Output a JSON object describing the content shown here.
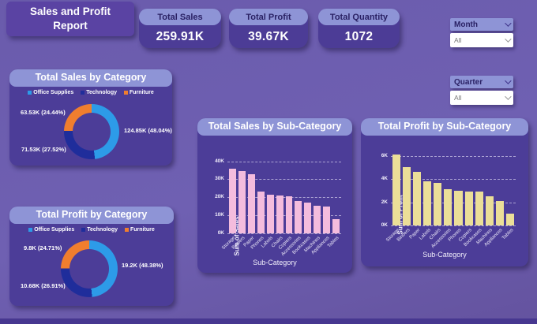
{
  "header": {
    "title": "Sales and Profit Report"
  },
  "kpis": [
    {
      "label": "Total Sales",
      "value": "259.91K"
    },
    {
      "label": "Total Profit",
      "value": "39.67K"
    },
    {
      "label": "Total Quantity",
      "value": "1072"
    }
  ],
  "slicers": [
    {
      "label": "Month",
      "value": "All"
    },
    {
      "label": "Quarter",
      "value": "All"
    }
  ],
  "colors": {
    "background": "#6A5BAC",
    "card": "#4C3D98",
    "card_header": "#8E94D6",
    "sales_bar": "#F4BCDD",
    "profit_bar": "#EBDE98",
    "office_supplies": "#2D9BE8",
    "technology": "#1F2D9B",
    "furniture": "#F07E2E"
  },
  "chart_data": [
    {
      "type": "pie",
      "subtype": "donut",
      "title": "Total Sales by Category",
      "legend_position": "top",
      "slices": [
        {
          "name": "Office Supplies",
          "value_k": 124.85,
          "pct": 48.04,
          "label": "124.85K (48.04%)",
          "color": "#2D9BE8"
        },
        {
          "name": "Technology",
          "value_k": 71.53,
          "pct": 27.52,
          "label": "71.53K (27.52%)",
          "color": "#1F2D9B"
        },
        {
          "name": "Furniture",
          "value_k": 63.53,
          "pct": 24.44,
          "label": "63.53K (24.44%)",
          "color": "#F07E2E"
        }
      ]
    },
    {
      "type": "pie",
      "subtype": "donut",
      "title": "Total Profit by Category",
      "legend_position": "top",
      "slices": [
        {
          "name": "Office Supplies",
          "value_k": 19.2,
          "pct": 48.38,
          "label": "19.2K (48.38%)",
          "color": "#2D9BE8"
        },
        {
          "name": "Technology",
          "value_k": 10.68,
          "pct": 26.91,
          "label": "10.68K (26.91%)",
          "color": "#1F2D9B"
        },
        {
          "name": "Furniture",
          "value_k": 9.8,
          "pct": 24.71,
          "label": "9.8K (24.71%)",
          "color": "#F07E2E"
        }
      ]
    },
    {
      "type": "bar",
      "title": "Total Sales by Sub-Category",
      "xlabel": "Sub-Category",
      "ylabel": "Sum of Sales",
      "ylim": [
        0,
        42
      ],
      "grid": "dashed",
      "bar_color": "#F4BCDD",
      "yticks": [
        {
          "label": "40K",
          "value": 40
        },
        {
          "label": "30K",
          "value": 30
        },
        {
          "label": "20K",
          "value": 20
        },
        {
          "label": "10K",
          "value": 10
        },
        {
          "label": "0K",
          "value": 0
        }
      ],
      "categories": [
        "Storage",
        "Binders",
        "Paper",
        "Phones",
        "Labels",
        "Chairs",
        "Copiers",
        "Accessories",
        "Bookcases",
        "Machines",
        "Appliances",
        "Tables"
      ],
      "values_k": [
        36,
        34.5,
        33,
        23,
        21.5,
        21,
        20.5,
        18,
        17,
        15.5,
        15,
        8
      ]
    },
    {
      "type": "bar",
      "title": "Total Profit by Sub-Category",
      "xlabel": "Sub-Category",
      "ylabel": "Sum of Profit",
      "ylim": [
        0,
        6.8
      ],
      "grid": "dashed",
      "bar_color": "#EBDE98",
      "yticks": [
        {
          "label": "6K",
          "value": 6
        },
        {
          "label": "4K",
          "value": 4
        },
        {
          "label": "2K",
          "value": 2
        },
        {
          "label": "0K",
          "value": 0
        }
      ],
      "categories": [
        "Storage",
        "Binders",
        "Paper",
        "Labels",
        "Chairs",
        "Accessories",
        "Phones",
        "Copiers",
        "Bookcases",
        "Machines",
        "Appliances",
        "Tables"
      ],
      "values_k": [
        6.1,
        5,
        4.6,
        3.8,
        3.7,
        3.1,
        3,
        2.9,
        2.9,
        2.5,
        2.1,
        1
      ]
    }
  ]
}
